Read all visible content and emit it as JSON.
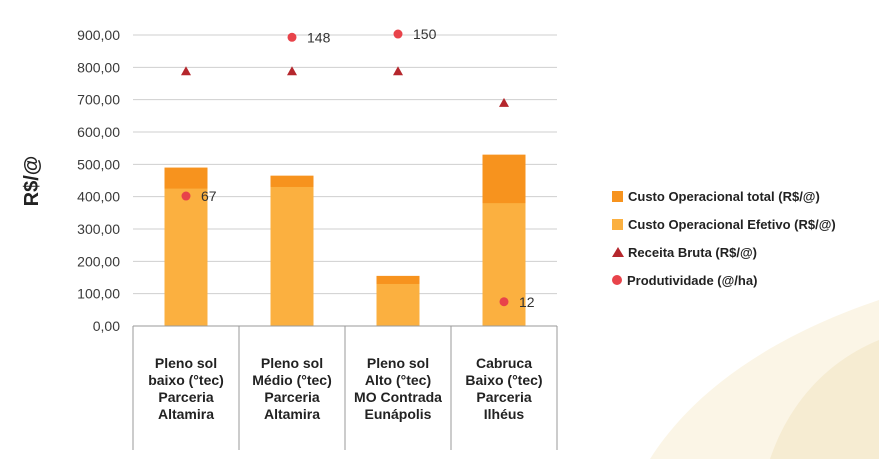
{
  "chart_data": {
    "type": "bar",
    "ylabel": "R$/@",
    "ylim": [
      0,
      900
    ],
    "yticks": [
      "0,00",
      "100,00",
      "200,00",
      "300,00",
      "400,00",
      "500,00",
      "600,00",
      "700,00",
      "800,00",
      "900,00"
    ],
    "categories": [
      [
        "Pleno sol",
        "baixo (°tec)",
        "Parceria",
        "Altamira"
      ],
      [
        "Pleno sol",
        "Médio (°tec)",
        "Parceria",
        "Altamira"
      ],
      [
        "Pleno sol",
        "Alto (°tec)",
        "MO Contrada",
        "Eunápolis"
      ],
      [
        "Cabruca",
        "Baixo (°tec)",
        "Parceria",
        "Ilhéus"
      ]
    ],
    "series": [
      {
        "name": "Custo Operacional total (R$/@)",
        "type": "bar",
        "color": "#f7931e",
        "values": [
          490,
          465,
          155,
          530
        ]
      },
      {
        "name": "Custo Operacional Efetivo (R$/@)",
        "type": "bar",
        "color": "#fbb040",
        "values": [
          425,
          430,
          130,
          380
        ]
      },
      {
        "name": "Receita Bruta (R$/@)",
        "type": "marker-triangle",
        "color": "#b5272d",
        "values": [
          788,
          788,
          788,
          690
        ]
      },
      {
        "name": "Produtividade (@/ha)",
        "type": "marker-circle",
        "color": "#e8434a",
        "values": [
          67,
          148,
          150,
          12
        ],
        "positions": [
          402,
          893,
          903,
          75
        ],
        "labels": [
          "67",
          "148",
          "150",
          "12"
        ]
      }
    ],
    "grid": true,
    "legend": "right"
  }
}
